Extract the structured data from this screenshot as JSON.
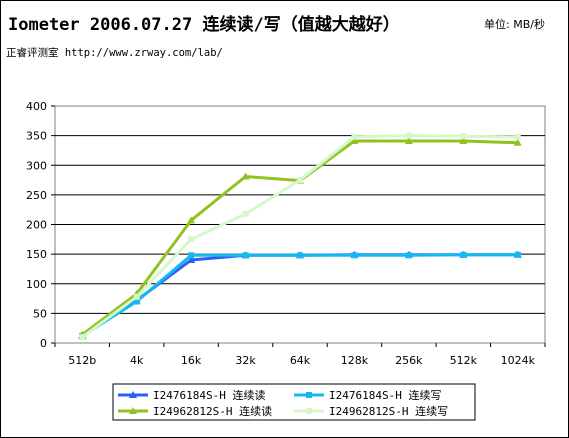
{
  "header": {
    "title": "Iometer 2006.07.27 连续读/写（值越大越好）",
    "unit": "单位: MB/秒",
    "subtitle": "正睿评测室 http://www.zrway.com/lab/"
  },
  "chart_data": {
    "type": "line",
    "categories": [
      "512b",
      "4k",
      "16k",
      "32k",
      "64k",
      "128k",
      "256k",
      "512k",
      "1024k"
    ],
    "ylim": [
      0,
      400
    ],
    "yticks": [
      0,
      50,
      100,
      150,
      200,
      250,
      300,
      350,
      400
    ],
    "grid": true,
    "legend_position": "bottom",
    "series": [
      {
        "name": "I2476184S-H 连续读",
        "color": "#2f5ff0",
        "marker": "triangle",
        "values": [
          12,
          72,
          140,
          148,
          148,
          149,
          149,
          149,
          149
        ]
      },
      {
        "name": "I2476184S-H 连续写",
        "color": "#16b8f0",
        "marker": "square",
        "values": [
          12,
          70,
          148,
          148,
          148,
          148,
          148,
          149,
          149
        ]
      },
      {
        "name": "I24962812S-H 连续读",
        "color": "#8fc31f",
        "marker": "triangle",
        "values": [
          14,
          83,
          207,
          281,
          274,
          341,
          341,
          341,
          338
        ]
      },
      {
        "name": "I24962812S-H 连续写",
        "color": "#d6f7cc",
        "marker": "square",
        "values": [
          10,
          78,
          175,
          218,
          275,
          348,
          350,
          349,
          348
        ]
      }
    ]
  }
}
